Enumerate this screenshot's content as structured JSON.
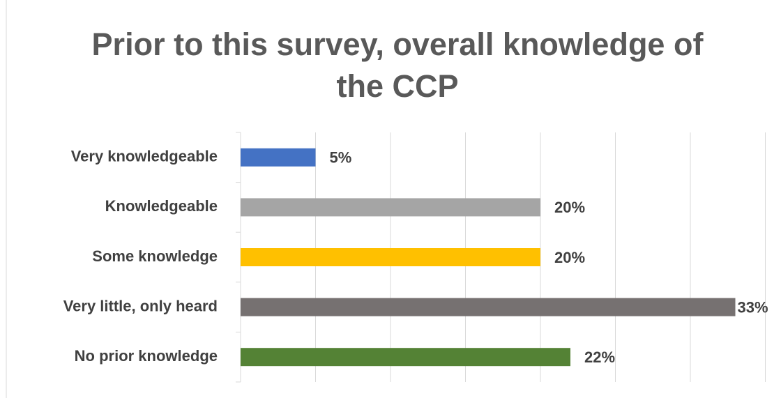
{
  "chart_data": {
    "type": "bar",
    "orientation": "horizontal",
    "title": "Prior to this survey, overall knowledge of the CCP",
    "categories": [
      "Very knowledgeable",
      "Knowledgeable",
      "Some knowledge",
      "Very little, only heard",
      "No prior knowledge"
    ],
    "values": [
      5,
      20,
      20,
      33,
      22
    ],
    "value_labels": [
      "5%",
      "20%",
      "20%",
      "33%",
      "22%"
    ],
    "colors": [
      "#4472c4",
      "#a5a5a5",
      "#ffc000",
      "#767171",
      "#548235"
    ],
    "xlim": [
      0,
      35
    ],
    "xticks": [
      0,
      5,
      10,
      15,
      20,
      25,
      30,
      35
    ],
    "grid": true
  }
}
